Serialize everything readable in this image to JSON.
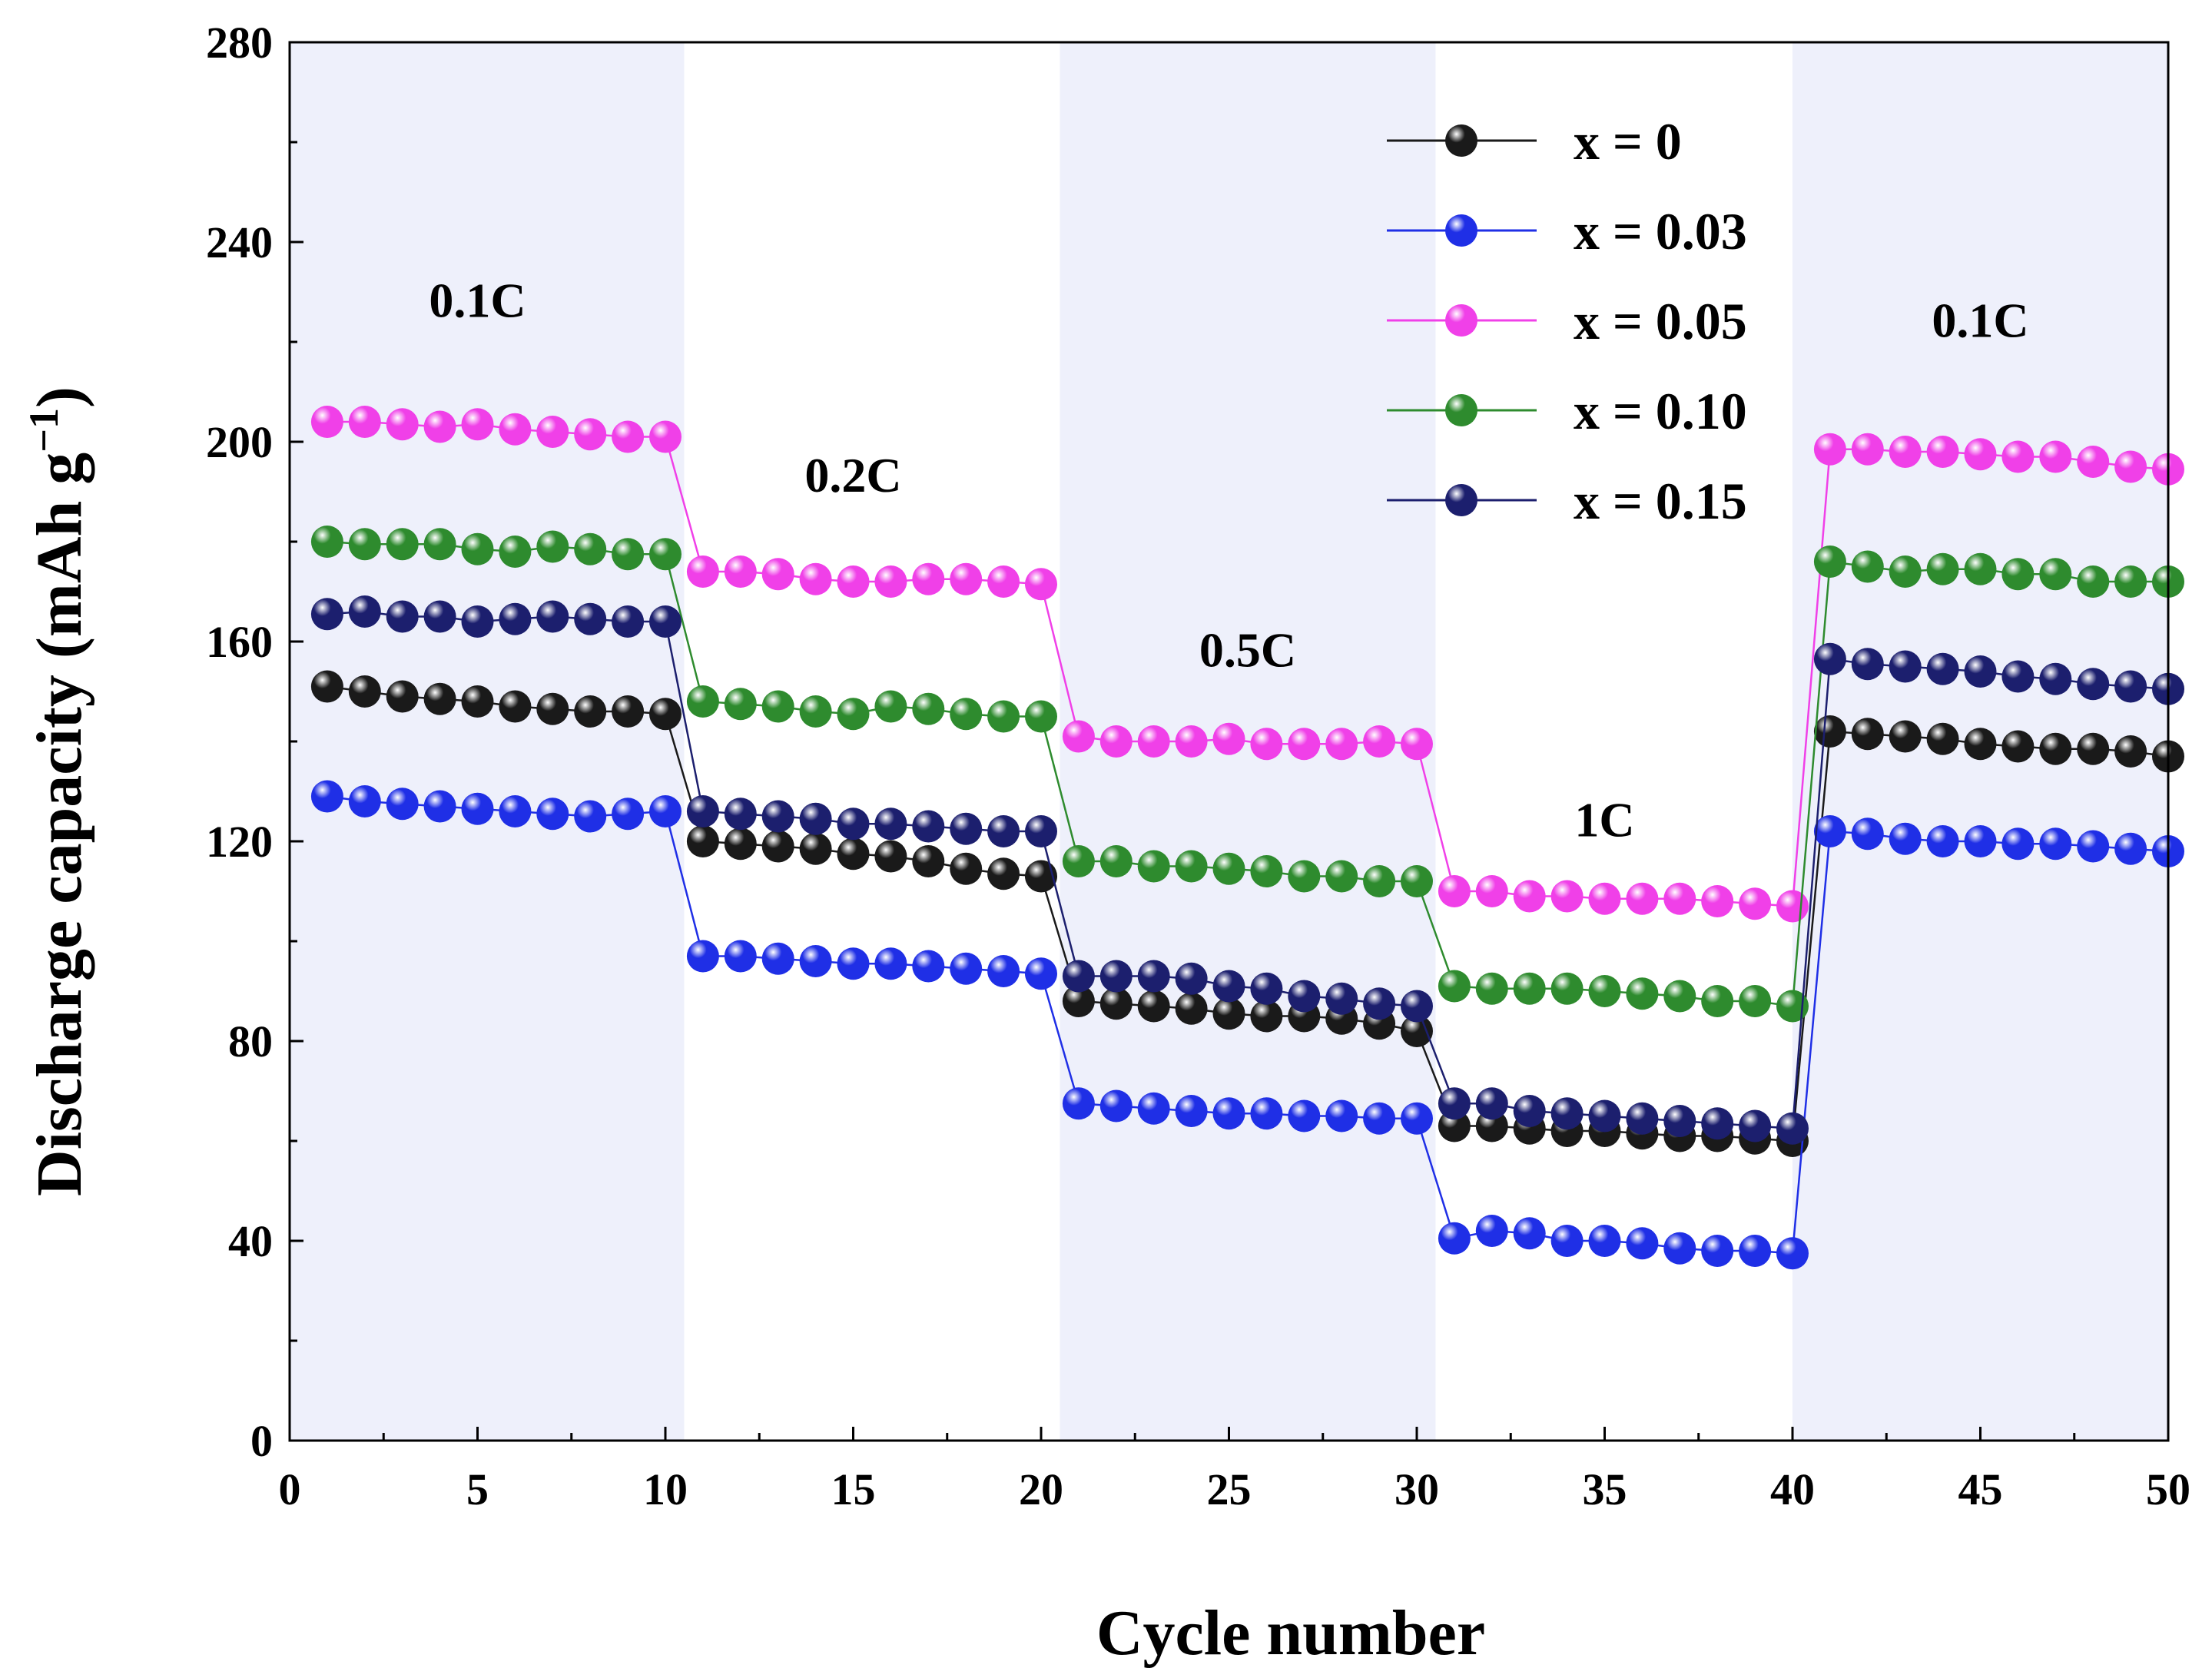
{
  "chart_data": {
    "type": "line",
    "title": "",
    "xlabel": "Cycle number",
    "ylabel_main": "Discharge capacity (mAh g",
    "ylabel_sup": "−1",
    "ylabel_close": ")",
    "xlim": [
      0,
      50
    ],
    "ylim": [
      0,
      280
    ],
    "xticks": [
      0,
      5,
      10,
      15,
      20,
      25,
      30,
      35,
      40,
      45,
      50
    ],
    "yticks": [
      0,
      40,
      80,
      120,
      160,
      200,
      240,
      280
    ],
    "grid": false,
    "legend_position": "top-right",
    "bands": [
      {
        "label": "0.1C",
        "from": 0,
        "to": 10.5,
        "shaded": true,
        "label_x": 5,
        "label_y": 225
      },
      {
        "label": "0.2C",
        "from": 10.5,
        "to": 20.5,
        "shaded": false,
        "label_x": 15,
        "label_y": 190
      },
      {
        "label": "0.5C",
        "from": 20.5,
        "to": 30.5,
        "shaded": true,
        "label_x": 25.5,
        "label_y": 155
      },
      {
        "label": "1C",
        "from": 30.5,
        "to": 40,
        "shaded": false,
        "label_x": 35,
        "label_y": 121
      },
      {
        "label": "0.1C",
        "from": 40,
        "to": 50,
        "shaded": true,
        "label_x": 45,
        "label_y": 221
      }
    ],
    "band_color": "#eef0fb",
    "x": [
      1,
      2,
      3,
      4,
      5,
      6,
      7,
      8,
      9,
      10,
      11,
      12,
      13,
      14,
      15,
      16,
      17,
      18,
      19,
      20,
      21,
      22,
      23,
      24,
      25,
      26,
      27,
      28,
      29,
      30,
      31,
      32,
      33,
      34,
      35,
      36,
      37,
      38,
      39,
      40,
      41,
      42,
      43,
      44,
      45,
      46,
      47,
      48,
      49,
      50
    ],
    "series": [
      {
        "name": "x = 0",
        "color": "#1a1a1a",
        "values": [
          151,
          150,
          149,
          148.5,
          148,
          147,
          146.5,
          146,
          146,
          145.5,
          120,
          119.5,
          119,
          118.5,
          117.5,
          117,
          116,
          114.5,
          113.5,
          113,
          88,
          87.5,
          87,
          86.5,
          85.5,
          85,
          85,
          84.5,
          83.5,
          82,
          63,
          63,
          62.5,
          62,
          62,
          61.5,
          61,
          61,
          60.5,
          60,
          142,
          141.5,
          141,
          140.5,
          139.5,
          139,
          138.5,
          138.5,
          138,
          137
        ]
      },
      {
        "name": "x = 0.03",
        "color": "#1f2fe6",
        "values": [
          129,
          128,
          127.5,
          127,
          126.5,
          126,
          125.5,
          125,
          125.5,
          126,
          97,
          97,
          96.5,
          96,
          95.5,
          95.5,
          95,
          94.5,
          94,
          93.5,
          67.5,
          67,
          66.5,
          66,
          65.5,
          65.5,
          65,
          65,
          64.5,
          64.5,
          40.5,
          42,
          41.5,
          40,
          40,
          39.5,
          38.5,
          38,
          38,
          37.5,
          122,
          121.5,
          120.5,
          120,
          120,
          119.5,
          119.5,
          119,
          118.5,
          118
        ]
      },
      {
        "name": "x = 0.05",
        "color": "#f040e8",
        "values": [
          204,
          204,
          203.5,
          203,
          203.5,
          202.5,
          202,
          201.5,
          201,
          201,
          174,
          174,
          173.5,
          172.5,
          172,
          172,
          172.5,
          172.5,
          172,
          171.5,
          141,
          140,
          140,
          140,
          140.5,
          139.5,
          139.5,
          139.5,
          140,
          139.5,
          110,
          110,
          109,
          109,
          108.5,
          108.5,
          108.5,
          108,
          107.5,
          107,
          198.5,
          198.5,
          198,
          198,
          197.5,
          197,
          197,
          196,
          195,
          194.5
        ]
      },
      {
        "name": "x = 0.10",
        "color": "#2e8b2e",
        "values": [
          180,
          179.5,
          179.5,
          179.5,
          178.5,
          178,
          179,
          178.5,
          177.5,
          177.5,
          148,
          147.5,
          147,
          146,
          145.5,
          147,
          146.5,
          145.5,
          145,
          145,
          116,
          116,
          115,
          115,
          114.5,
          114,
          113,
          113,
          112,
          112,
          91,
          90.5,
          90.5,
          90.5,
          90,
          89.5,
          89,
          88,
          88,
          87,
          176,
          175,
          174,
          174.5,
          174.5,
          173.5,
          173.5,
          172,
          172,
          172
        ]
      },
      {
        "name": "x = 0.15",
        "color": "#1c1f6e",
        "values": [
          165.5,
          166,
          165,
          165,
          164,
          164.5,
          165,
          164.5,
          164,
          164,
          126,
          125.5,
          125,
          124.5,
          123.5,
          123.5,
          123,
          122.5,
          122,
          122,
          93,
          93,
          93,
          92.5,
          91,
          90.5,
          89,
          88.5,
          87.5,
          87,
          67.5,
          67.5,
          66,
          65.5,
          65,
          64.5,
          64,
          63.5,
          63,
          62.5,
          156.5,
          155.5,
          155,
          154.5,
          154,
          153,
          152.5,
          151.5,
          151,
          150.5
        ]
      }
    ]
  }
}
